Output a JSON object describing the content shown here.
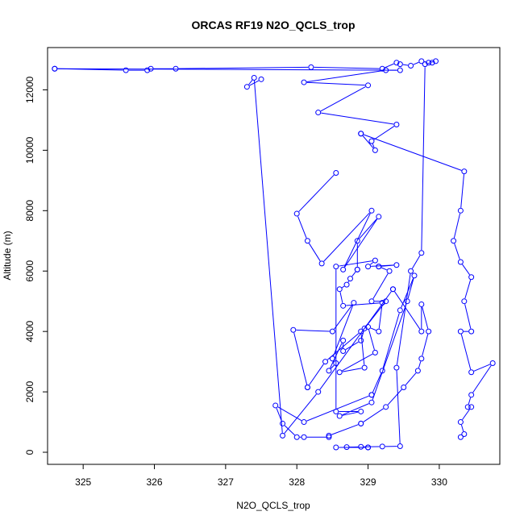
{
  "chart_data": {
    "type": "scatter",
    "title": "ORCAS RF19 N2O_QCLS_trop",
    "xlabel": "N2O_QCLS_trop",
    "ylabel": "Altitude (m)",
    "xlim": [
      324.5,
      330.85
    ],
    "ylim": [
      -400,
      13400
    ],
    "xticks": [
      325,
      326,
      327,
      328,
      329,
      330
    ],
    "yticks": [
      0,
      2000,
      4000,
      6000,
      8000,
      10000,
      12000
    ],
    "grid": false,
    "color": "#0000ff",
    "marker": "open-circle",
    "connected": true,
    "series": [
      {
        "x": [
          328.55,
          329.0,
          329.0,
          328.7,
          328.9,
          329.2,
          329.45,
          329.4,
          329.6,
          329.75,
          329.8,
          329.9,
          329.95,
          329.85,
          329.75,
          329.6,
          329.45,
          329.4,
          329.2,
          328.2,
          326.3,
          325.95,
          325.9,
          325.6,
          324.6
        ],
        "y": [
          160,
          160,
          160,
          170,
          180,
          190,
          200,
          2800,
          6000,
          6600,
          12850,
          12900,
          12950,
          12900,
          12950,
          12800,
          12850,
          12900,
          12700,
          12750,
          12700,
          12700,
          12650,
          12650,
          12700
        ]
      },
      {
        "x": [
          324.6,
          329.45,
          329.25,
          328.1,
          329.0,
          328.3,
          329.4,
          329.05,
          329.1,
          328.9
        ],
        "y": [
          12700,
          12650,
          12650,
          12250,
          12150,
          11250,
          10850,
          10300,
          10000,
          10550
        ]
      },
      {
        "x": [
          328.9,
          330.35,
          330.3,
          330.2,
          330.3,
          330.45,
          330.35,
          330.45,
          330.3,
          330.45,
          330.75,
          330.45,
          330.4,
          330.45,
          330.3,
          330.35,
          330.3
        ],
        "y": [
          10550,
          9300,
          8000,
          7000,
          6300,
          5800,
          5000,
          4000,
          4000,
          2650,
          2950,
          1900,
          1500,
          1500,
          1000,
          600,
          500
        ]
      },
      {
        "x": [
          328.55,
          328.0,
          328.15,
          328.35,
          329.05,
          328.65,
          329.15,
          328.85,
          328.85
        ],
        "y": [
          9250,
          7900,
          7000,
          6250,
          8000,
          6050,
          7800,
          7000,
          6050
        ]
      },
      {
        "x": [
          328.85,
          328.75,
          328.7,
          328.6,
          328.65,
          329.2,
          329.15,
          329.0,
          329.1,
          328.6,
          328.95,
          328.9,
          328.4,
          328.15
        ],
        "y": [
          6050,
          5750,
          5550,
          5400,
          4850,
          4950,
          4000,
          4150,
          3300,
          2650,
          2800,
          4000,
          3000,
          2150
        ]
      },
      {
        "x": [
          328.15,
          327.95,
          328.5,
          328.8,
          328.5,
          328.55,
          328.45,
          328.65,
          328.65,
          328.9,
          328.95,
          329.25,
          329.05,
          329.3,
          329.15
        ],
        "y": [
          2150,
          4050,
          4000,
          4950,
          3100,
          2950,
          2700,
          3700,
          3350,
          3700,
          4100,
          5000,
          5000,
          6000,
          6150
        ]
      },
      {
        "x": [
          329.15,
          329.4,
          329.0,
          329.1,
          328.55,
          328.55,
          328.9,
          328.6,
          329.05,
          329.55,
          329.65,
          329.45,
          329.2,
          329.05
        ],
        "y": [
          6150,
          6200,
          6150,
          6350,
          6150,
          1350,
          1350,
          1200,
          1650,
          5000,
          5850,
          4700,
          2700,
          1900
        ]
      },
      {
        "x": [
          329.05,
          328.1,
          327.7,
          327.8,
          328.0,
          328.1,
          328.45,
          328.45,
          328.9
        ],
        "y": [
          1900,
          1000,
          1550,
          950,
          500,
          500,
          500,
          550,
          950
        ]
      },
      {
        "x": [
          328.9,
          329.25,
          329.5,
          329.7,
          329.75,
          329.85,
          329.75,
          329.75,
          329.35
        ],
        "y": [
          950,
          1500,
          2150,
          2700,
          3100,
          4000,
          4900,
          4000,
          5400
        ]
      },
      {
        "x": [
          329.35,
          328.3,
          327.8,
          327.4,
          327.3,
          327.5
        ],
        "y": [
          5400,
          2000,
          550,
          12400,
          12100,
          12350
        ]
      }
    ]
  }
}
